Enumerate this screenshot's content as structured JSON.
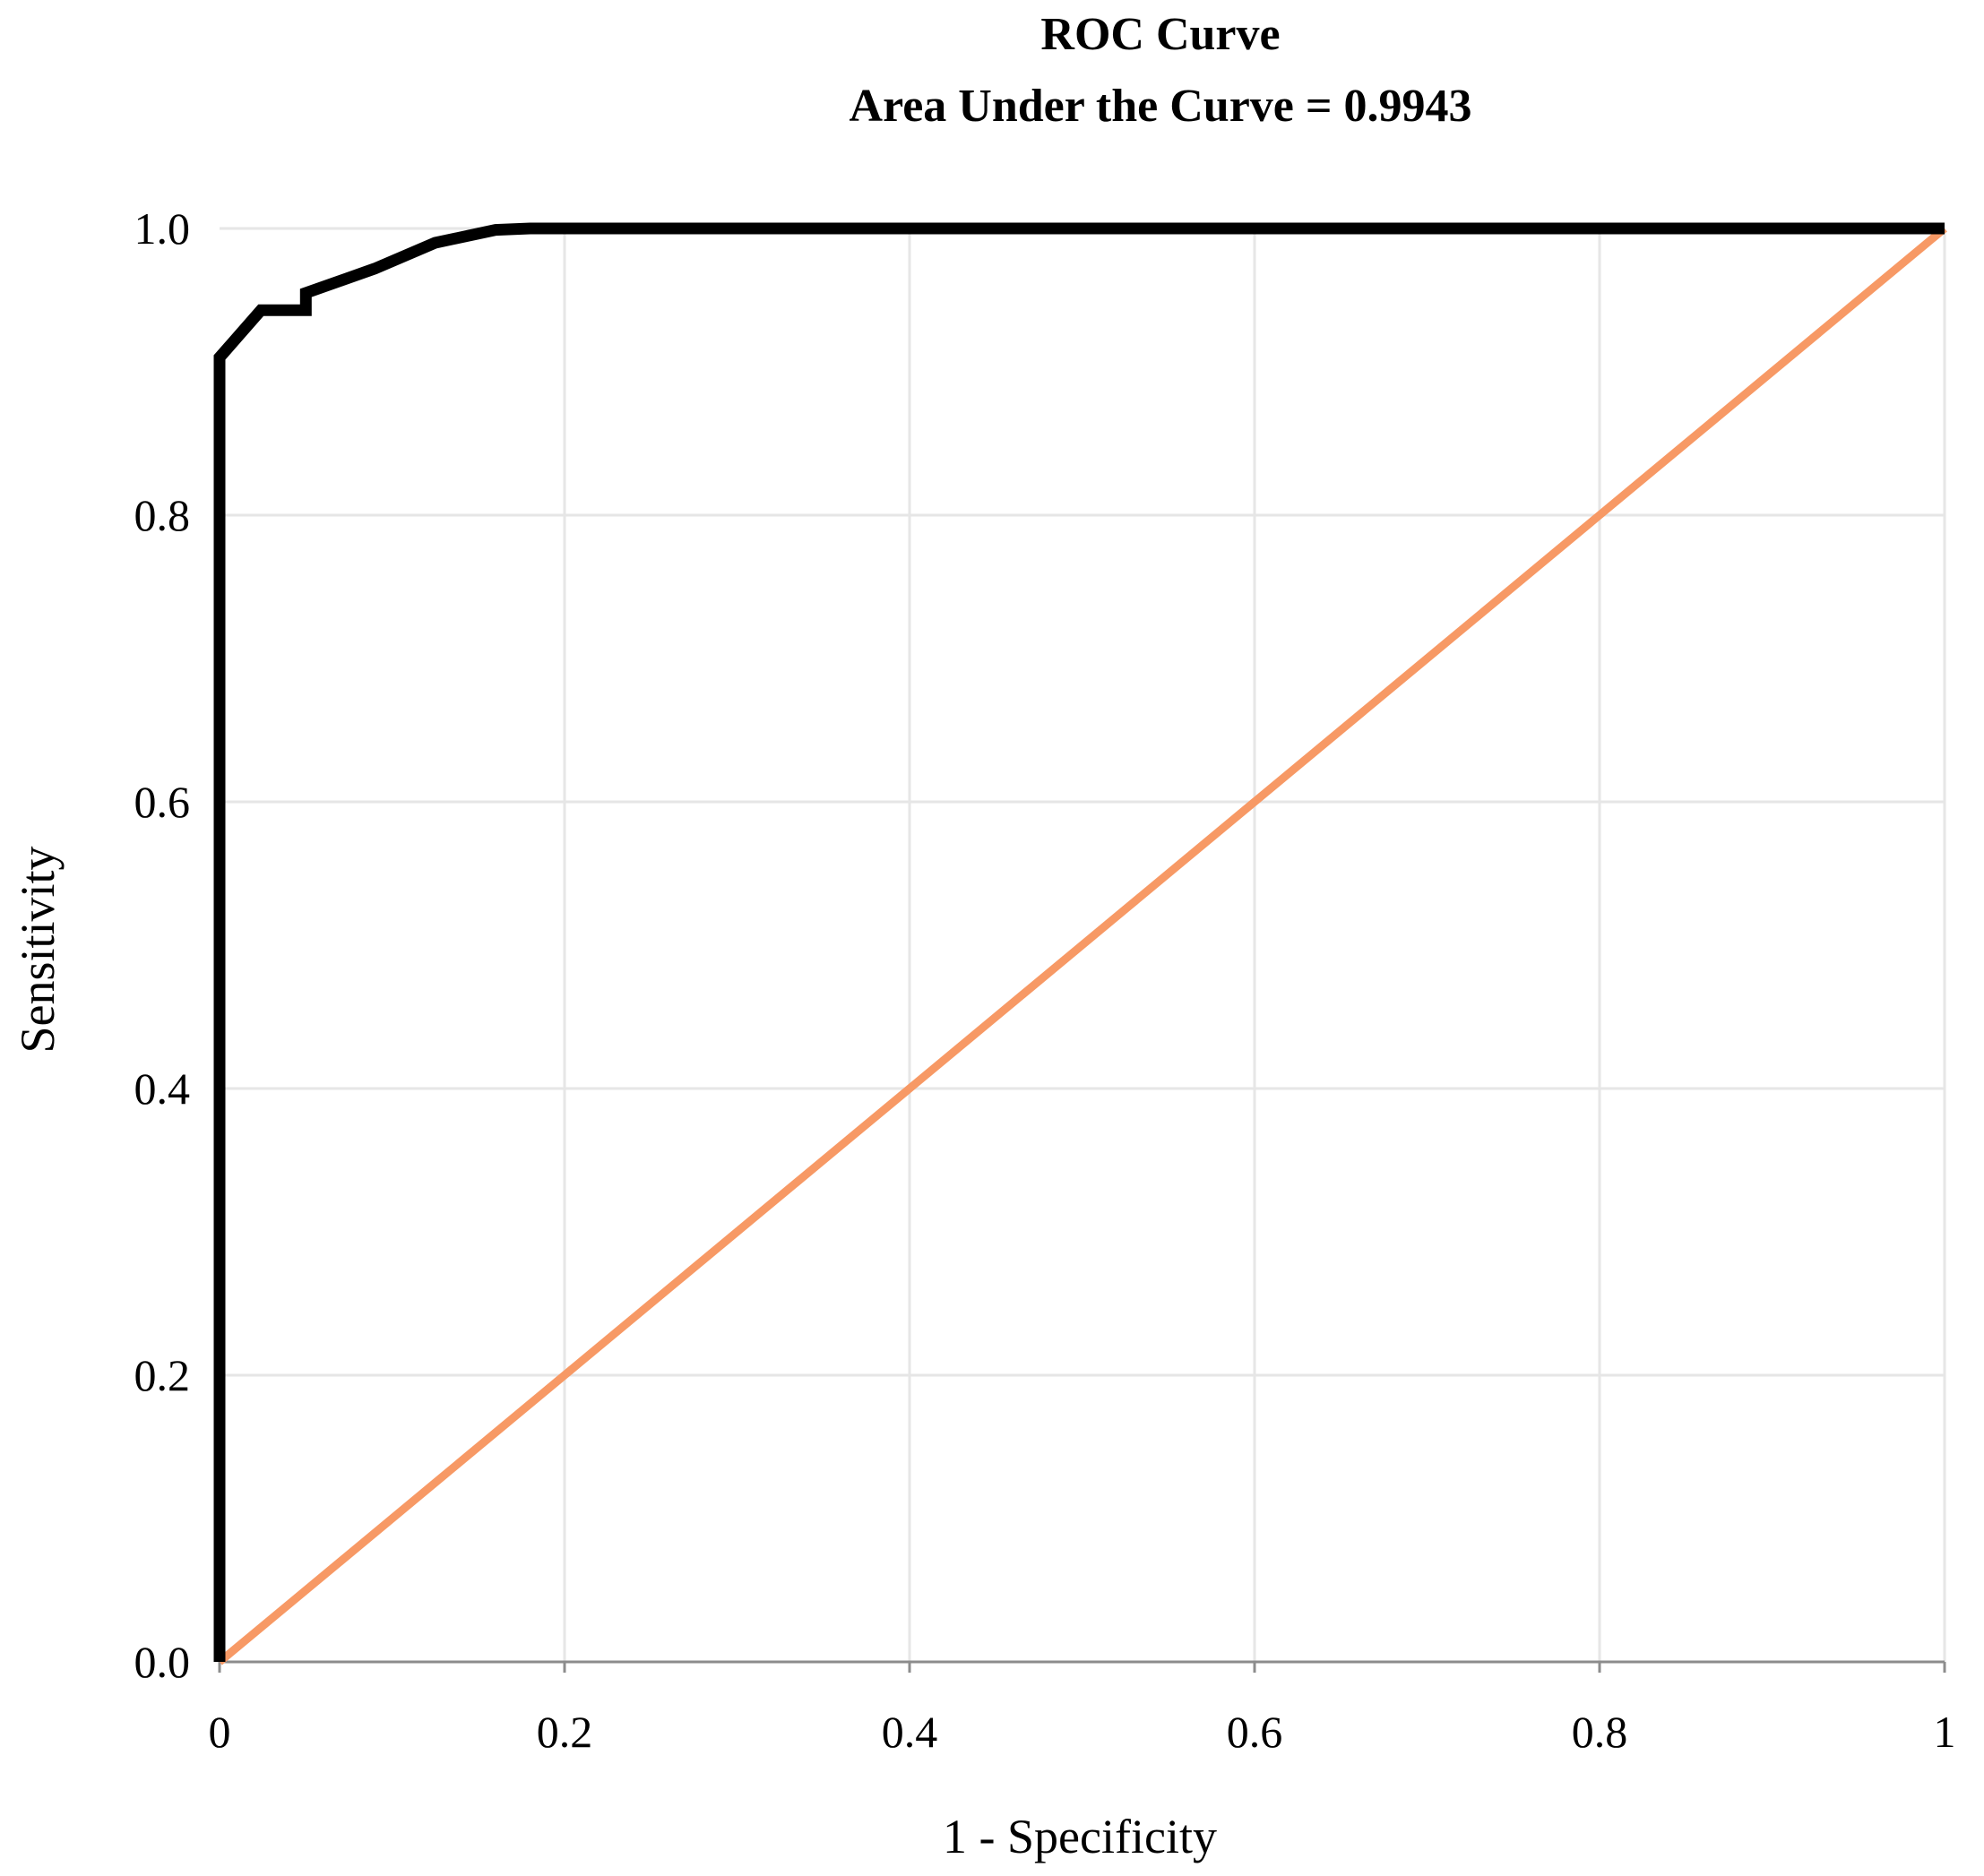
{
  "chart_data": {
    "type": "line",
    "title": "ROC Curve",
    "subtitle": "Area Under  the Curve = 0.9943",
    "xlabel": "1 - Specificity",
    "ylabel": "Sensitivity",
    "xlim": [
      0,
      1
    ],
    "ylim": [
      0,
      1
    ],
    "x_ticks": [
      "0",
      "0.2",
      "0.4",
      "0.6",
      "0.8",
      "1"
    ],
    "y_ticks": [
      "0.0",
      "0.2",
      "0.4",
      "0.6",
      "0.8",
      "1.0"
    ],
    "grid": true,
    "series": [
      {
        "color": "#000000",
        "points": [
          [
            0,
            0
          ],
          [
            0,
            0.91
          ],
          [
            0.024,
            0.943
          ],
          [
            0.05,
            0.943
          ],
          [
            0.05,
            0.955
          ],
          [
            0.09,
            0.972
          ],
          [
            0.125,
            0.99
          ],
          [
            0.16,
            0.999
          ],
          [
            0.18,
            1.0
          ],
          [
            1.0,
            1.0
          ]
        ]
      },
      {
        "color": "#f79965",
        "points": [
          [
            0,
            0
          ],
          [
            1,
            1
          ]
        ]
      }
    ]
  }
}
